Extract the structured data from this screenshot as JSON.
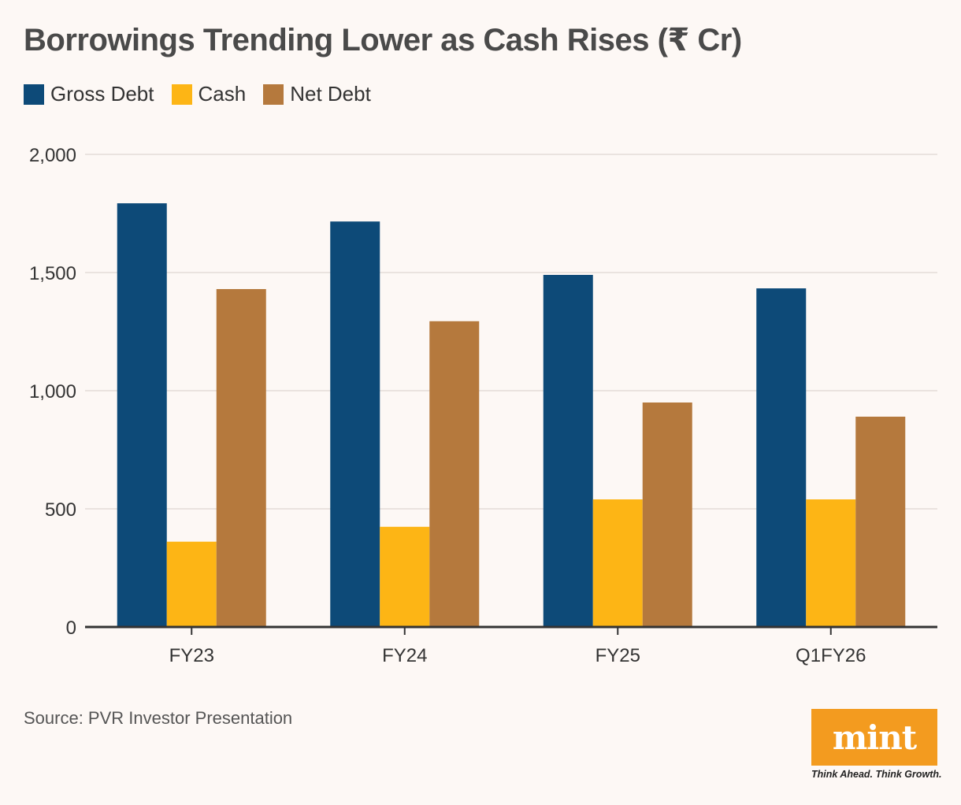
{
  "title": "Borrowings Trending Lower as Cash Rises (₹ Cr)",
  "source": "Source: PVR Investor Presentation",
  "logo": {
    "brand": "mint",
    "tagline": "Think Ahead. Think Growth.",
    "color": "#f39b1f"
  },
  "chart_data": {
    "type": "bar",
    "title": "Borrowings Trending Lower as Cash Rises (₹ Cr)",
    "xlabel": "",
    "ylabel": "",
    "categories": [
      "FY23",
      "FY24",
      "FY25",
      "Q1FY26"
    ],
    "series": [
      {
        "name": "Gross Debt",
        "color": "#0d4a78",
        "values": [
          1793,
          1716,
          1490,
          1433
        ]
      },
      {
        "name": "Cash",
        "color": "#fdb515",
        "values": [
          361,
          424,
          540,
          540
        ]
      },
      {
        "name": "Net Debt",
        "color": "#b5793d",
        "values": [
          1430,
          1294,
          950,
          890
        ]
      }
    ],
    "ylim": [
      0,
      2000
    ],
    "yticks": [
      0,
      500,
      1000,
      1500,
      2000
    ],
    "ytick_labels": [
      "0",
      "500",
      "1,000",
      "1,500",
      "2,000"
    ],
    "grid": true,
    "legend_position": "top-left"
  }
}
